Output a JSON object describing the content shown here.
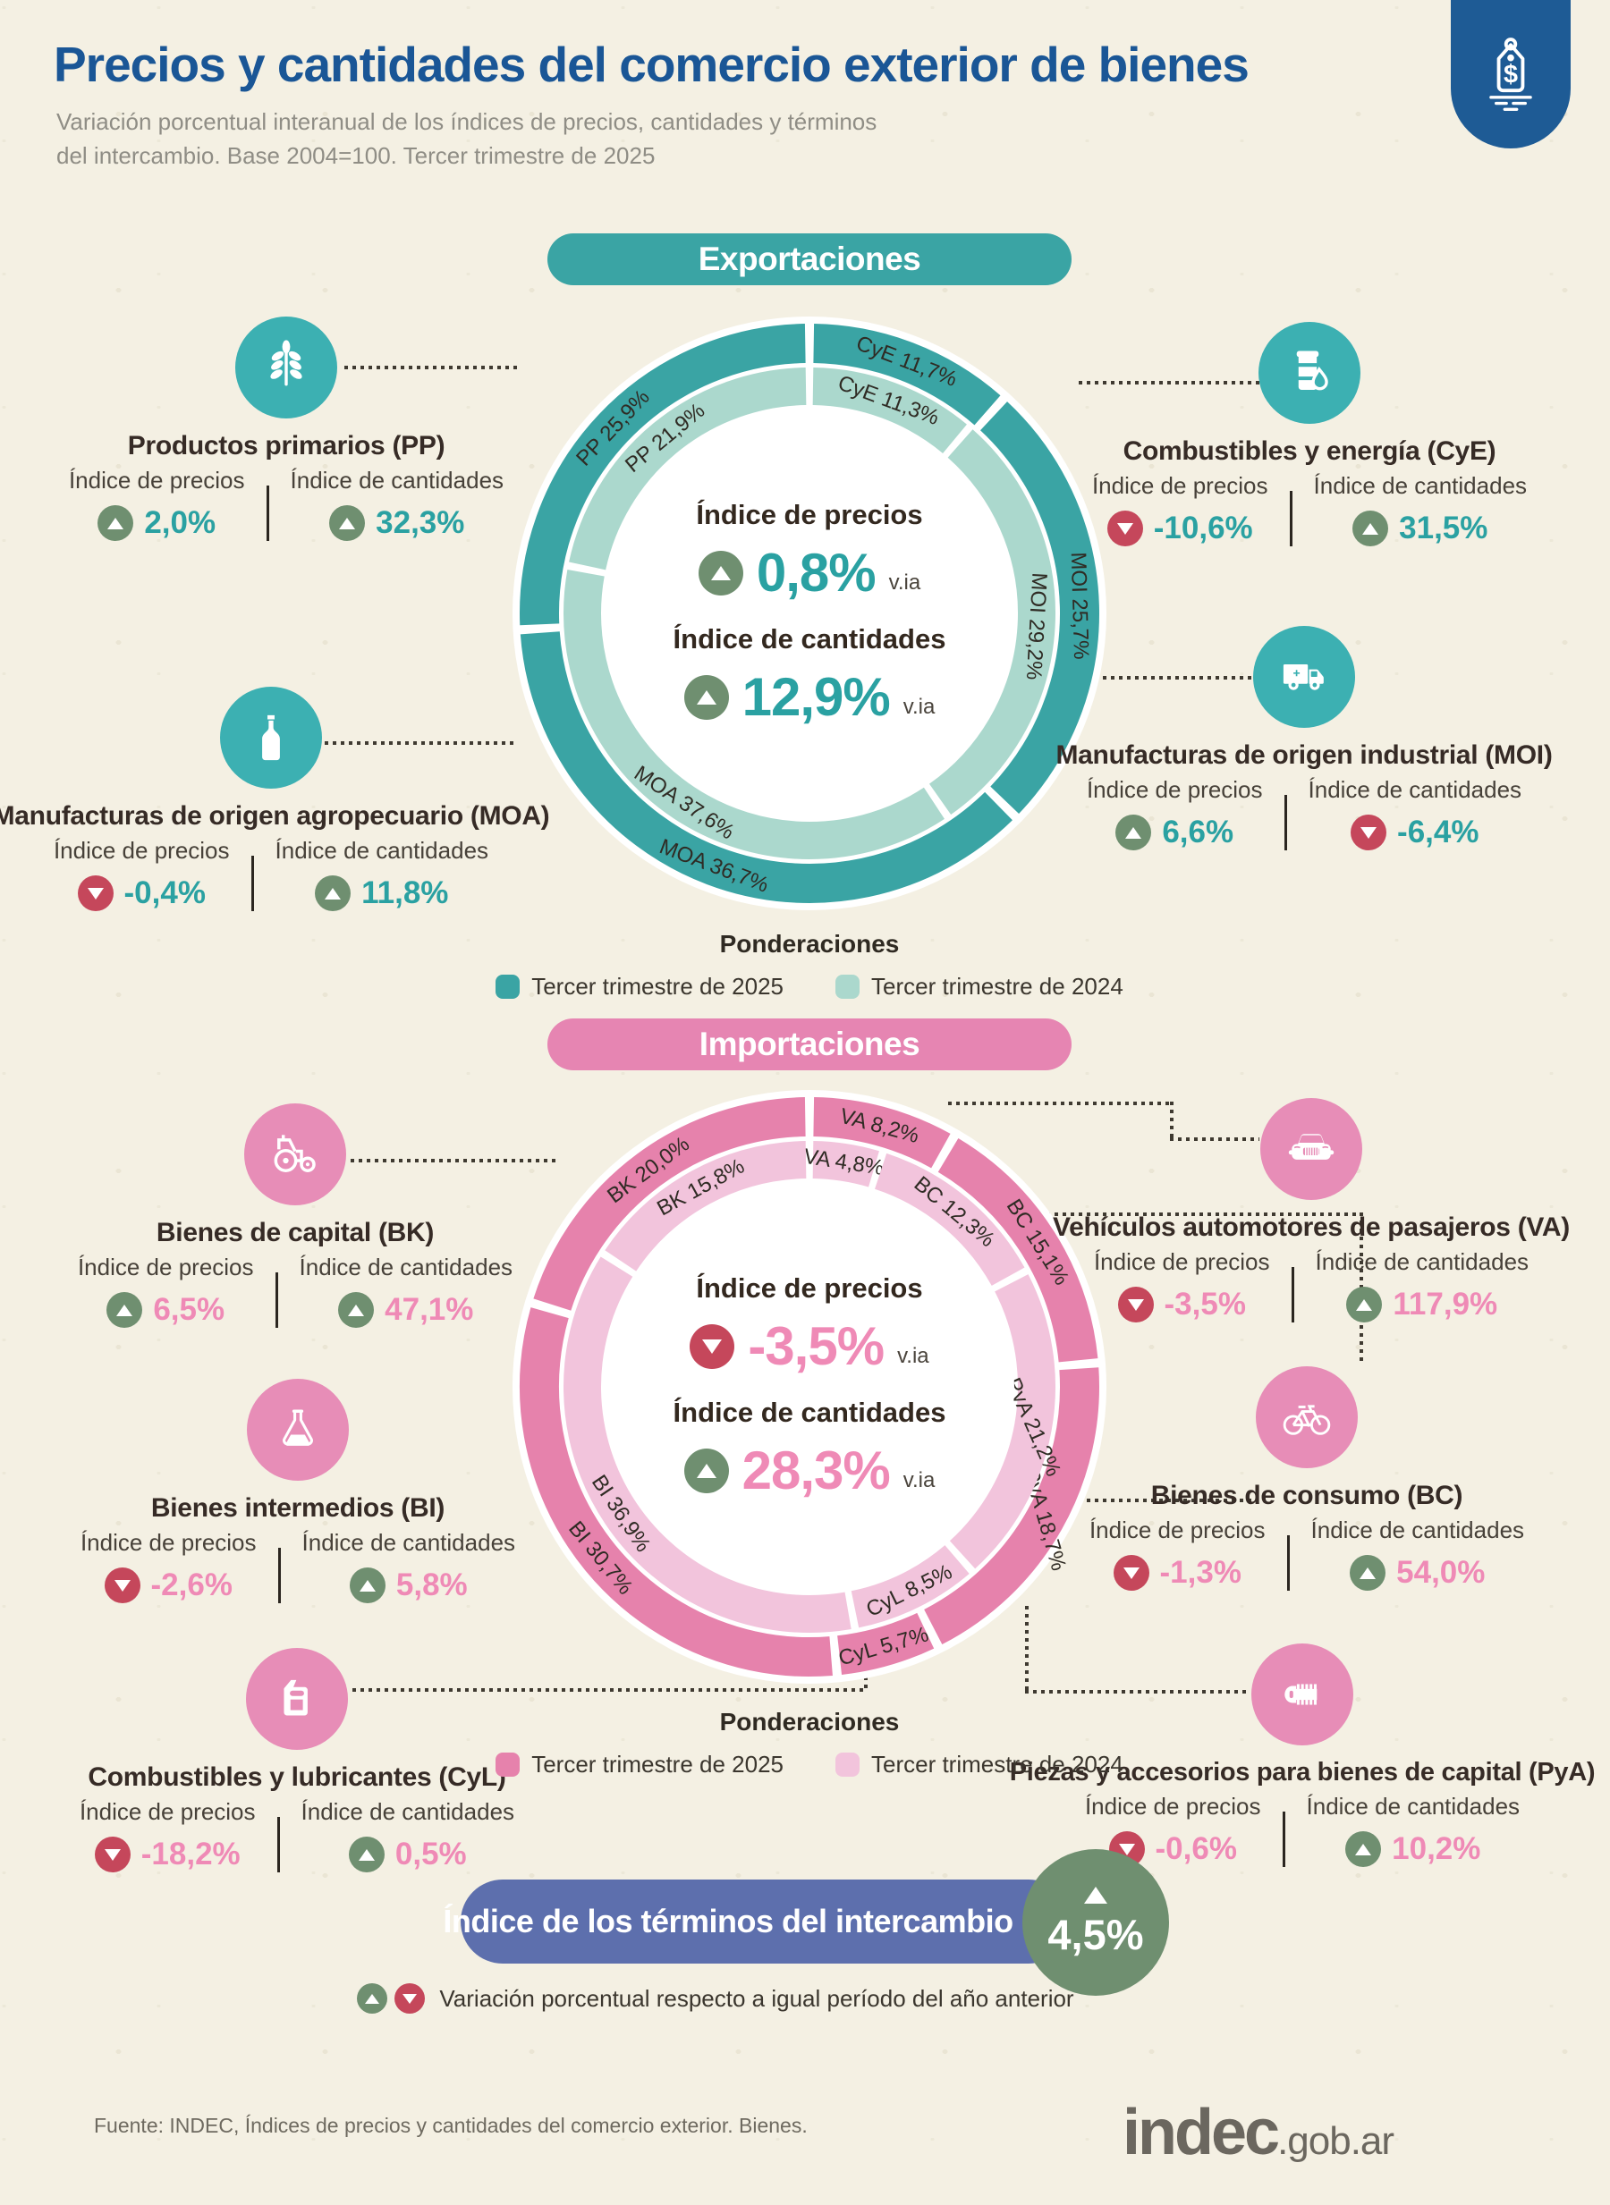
{
  "header": {
    "title": "Precios y cantidades del comercio exterior de bienes",
    "subtitle_line1": "Variación porcentual interanual de los índices de precios, cantidades y términos",
    "subtitle_line2": "del intercambio. Base 2004=100. Tercer trimestre de 2025"
  },
  "labels": {
    "precios": "Índice de precios",
    "cantidades": "Índice de cantidades",
    "via": "v.ia",
    "ponderaciones": "Ponderaciones"
  },
  "colors": {
    "title_blue": "#1a5696",
    "export_dark": "#3aa4a4",
    "export_light": "#abd8cd",
    "import_dark": "#e682ac",
    "import_light": "#f2c4dc",
    "up_green": "#6f8f70",
    "down_red": "#c5475b",
    "export_value_teal": "#2aa1a2",
    "import_value_pink": "#ef8ab6",
    "terms_pill_indigo": "#5d6fad",
    "header_tag_blue": "#1e5b95"
  },
  "chart_data": [
    {
      "type": "donut",
      "group": "Exportaciones",
      "center": {
        "precios": "0,8%",
        "precios_dir": "up",
        "cantidades": "12,9%",
        "cantidades_dir": "up"
      },
      "rings": [
        {
          "name": "Tercer trimestre de 2025",
          "position": "outer",
          "color": "#3aa4a4",
          "segments": [
            {
              "label": "CyE 11,7%",
              "value": 11.7
            },
            {
              "label": "MOI 25,7%",
              "value": 25.7
            },
            {
              "label": "MOA 36,7%",
              "value": 36.7
            },
            {
              "label": "PP 25,9%",
              "value": 25.9
            }
          ]
        },
        {
          "name": "Tercer trimestre de 2024",
          "position": "inner",
          "color": "#abd8cd",
          "segments": [
            {
              "label": "CyE 11,3%",
              "value": 11.3
            },
            {
              "label": "MOI 29,2%",
              "value": 29.2
            },
            {
              "label": "MOA 37,6%",
              "value": 37.6
            },
            {
              "label": "PP 21,9%",
              "value": 21.9
            }
          ]
        }
      ]
    },
    {
      "type": "donut",
      "group": "Importaciones",
      "center": {
        "precios": "-3,5%",
        "precios_dir": "down",
        "cantidades": "28,3%",
        "cantidades_dir": "up"
      },
      "rings": [
        {
          "name": "Tercer trimestre de 2025",
          "position": "outer",
          "color": "#e682ac",
          "segments": [
            {
              "label": "VA 8,2%",
              "value": 8.2
            },
            {
              "label": "BC 15,1%",
              "value": 15.1
            },
            {
              "label": "PyA 18,7%",
              "value": 18.7
            },
            {
              "label": "CyL 5,7%",
              "value": 5.7
            },
            {
              "label": "BI 30,7%",
              "value": 30.7
            },
            {
              "label": "BK 20,0%",
              "value": 20.0
            }
          ]
        },
        {
          "name": "Tercer trimestre de 2024",
          "position": "inner",
          "color": "#f2c4dc",
          "segments": [
            {
              "label": "VA 4,8%",
              "value": 4.8
            },
            {
              "label": "BC 12,3%",
              "value": 12.3
            },
            {
              "label": "PyA 21,2%",
              "value": 21.2
            },
            {
              "label": "CyL 8,5%",
              "value": 8.5
            },
            {
              "label": "BI 36,9%",
              "value": 36.9
            },
            {
              "label": "BK 15,8%",
              "value": 15.8
            }
          ]
        }
      ]
    }
  ],
  "sections": {
    "exportaciones": {
      "badge": "Exportaciones",
      "ponderaciones_title": "Ponderaciones",
      "legend": [
        {
          "label": "Tercer trimestre de 2025",
          "color": "#3aa4a4"
        },
        {
          "label": "Tercer trimestre de 2024",
          "color": "#abd8cd"
        }
      ],
      "categories": [
        {
          "code": "PP",
          "name": "Productos primarios (PP)",
          "icon": "wheat",
          "precios": {
            "value": "2,0%",
            "dir": "up"
          },
          "cantidades": {
            "value": "32,3%",
            "dir": "up"
          }
        },
        {
          "code": "CyE",
          "name": "Combustibles y energía (CyE)",
          "icon": "fuel-barrel",
          "precios": {
            "value": "-10,6%",
            "dir": "down"
          },
          "cantidades": {
            "value": "31,5%",
            "dir": "up"
          }
        },
        {
          "code": "MOA",
          "name": "Manufacturas de origen agropecuario (MOA)",
          "icon": "bottle",
          "precios": {
            "value": "-0,4%",
            "dir": "down"
          },
          "cantidades": {
            "value": "11,8%",
            "dir": "up"
          }
        },
        {
          "code": "MOI",
          "name": "Manufacturas de origen industrial (MOI)",
          "icon": "truck",
          "precios": {
            "value": "6,6%",
            "dir": "up"
          },
          "cantidades": {
            "value": "-6,4%",
            "dir": "down"
          }
        }
      ]
    },
    "importaciones": {
      "badge": "Importaciones",
      "ponderaciones_title": "Ponderaciones",
      "legend": [
        {
          "label": "Tercer trimestre de 2025",
          "color": "#e682ac"
        },
        {
          "label": "Tercer trimestre de 2024",
          "color": "#f2c4dc"
        }
      ],
      "categories": [
        {
          "code": "BK",
          "name": "Bienes de capital (BK)",
          "icon": "tractor",
          "precios": {
            "value": "6,5%",
            "dir": "up"
          },
          "cantidades": {
            "value": "47,1%",
            "dir": "up"
          }
        },
        {
          "code": "VA",
          "name": "Vehículos automotores de pasajeros (VA)",
          "icon": "car",
          "precios": {
            "value": "-3,5%",
            "dir": "down"
          },
          "cantidades": {
            "value": "117,9%",
            "dir": "up"
          }
        },
        {
          "code": "BI",
          "name": "Bienes intermedios (BI)",
          "icon": "flask",
          "precios": {
            "value": "-2,6%",
            "dir": "down"
          },
          "cantidades": {
            "value": "5,8%",
            "dir": "up"
          }
        },
        {
          "code": "BC",
          "name": "Bienes de consumo (BC)",
          "icon": "bicycle",
          "precios": {
            "value": "-1,3%",
            "dir": "down"
          },
          "cantidades": {
            "value": "54,0%",
            "dir": "up"
          }
        },
        {
          "code": "CyL",
          "name": "Combustibles y lubricantes (CyL)",
          "icon": "jerrycan",
          "precios": {
            "value": "-18,2%",
            "dir": "down"
          },
          "cantidades": {
            "value": "0,5%",
            "dir": "up"
          }
        },
        {
          "code": "PyA",
          "name": "Piezas y accesorios para bienes de capital (PyA)",
          "icon": "screw",
          "precios": {
            "value": "-0,6%",
            "dir": "down"
          },
          "cantidades": {
            "value": "10,2%",
            "dir": "up"
          }
        }
      ]
    }
  },
  "terms_index": {
    "label": "Índice de los términos del intercambio",
    "value": "4,5%",
    "dir": "up"
  },
  "footnote": {
    "legend": "Variación porcentual respecto a igual período del año anterior"
  },
  "footer": {
    "source": "Fuente: INDEC, Índices de precios y cantidades del comercio exterior. Bienes.",
    "logo": "indec",
    "logo_suffix": ".gob.ar"
  }
}
